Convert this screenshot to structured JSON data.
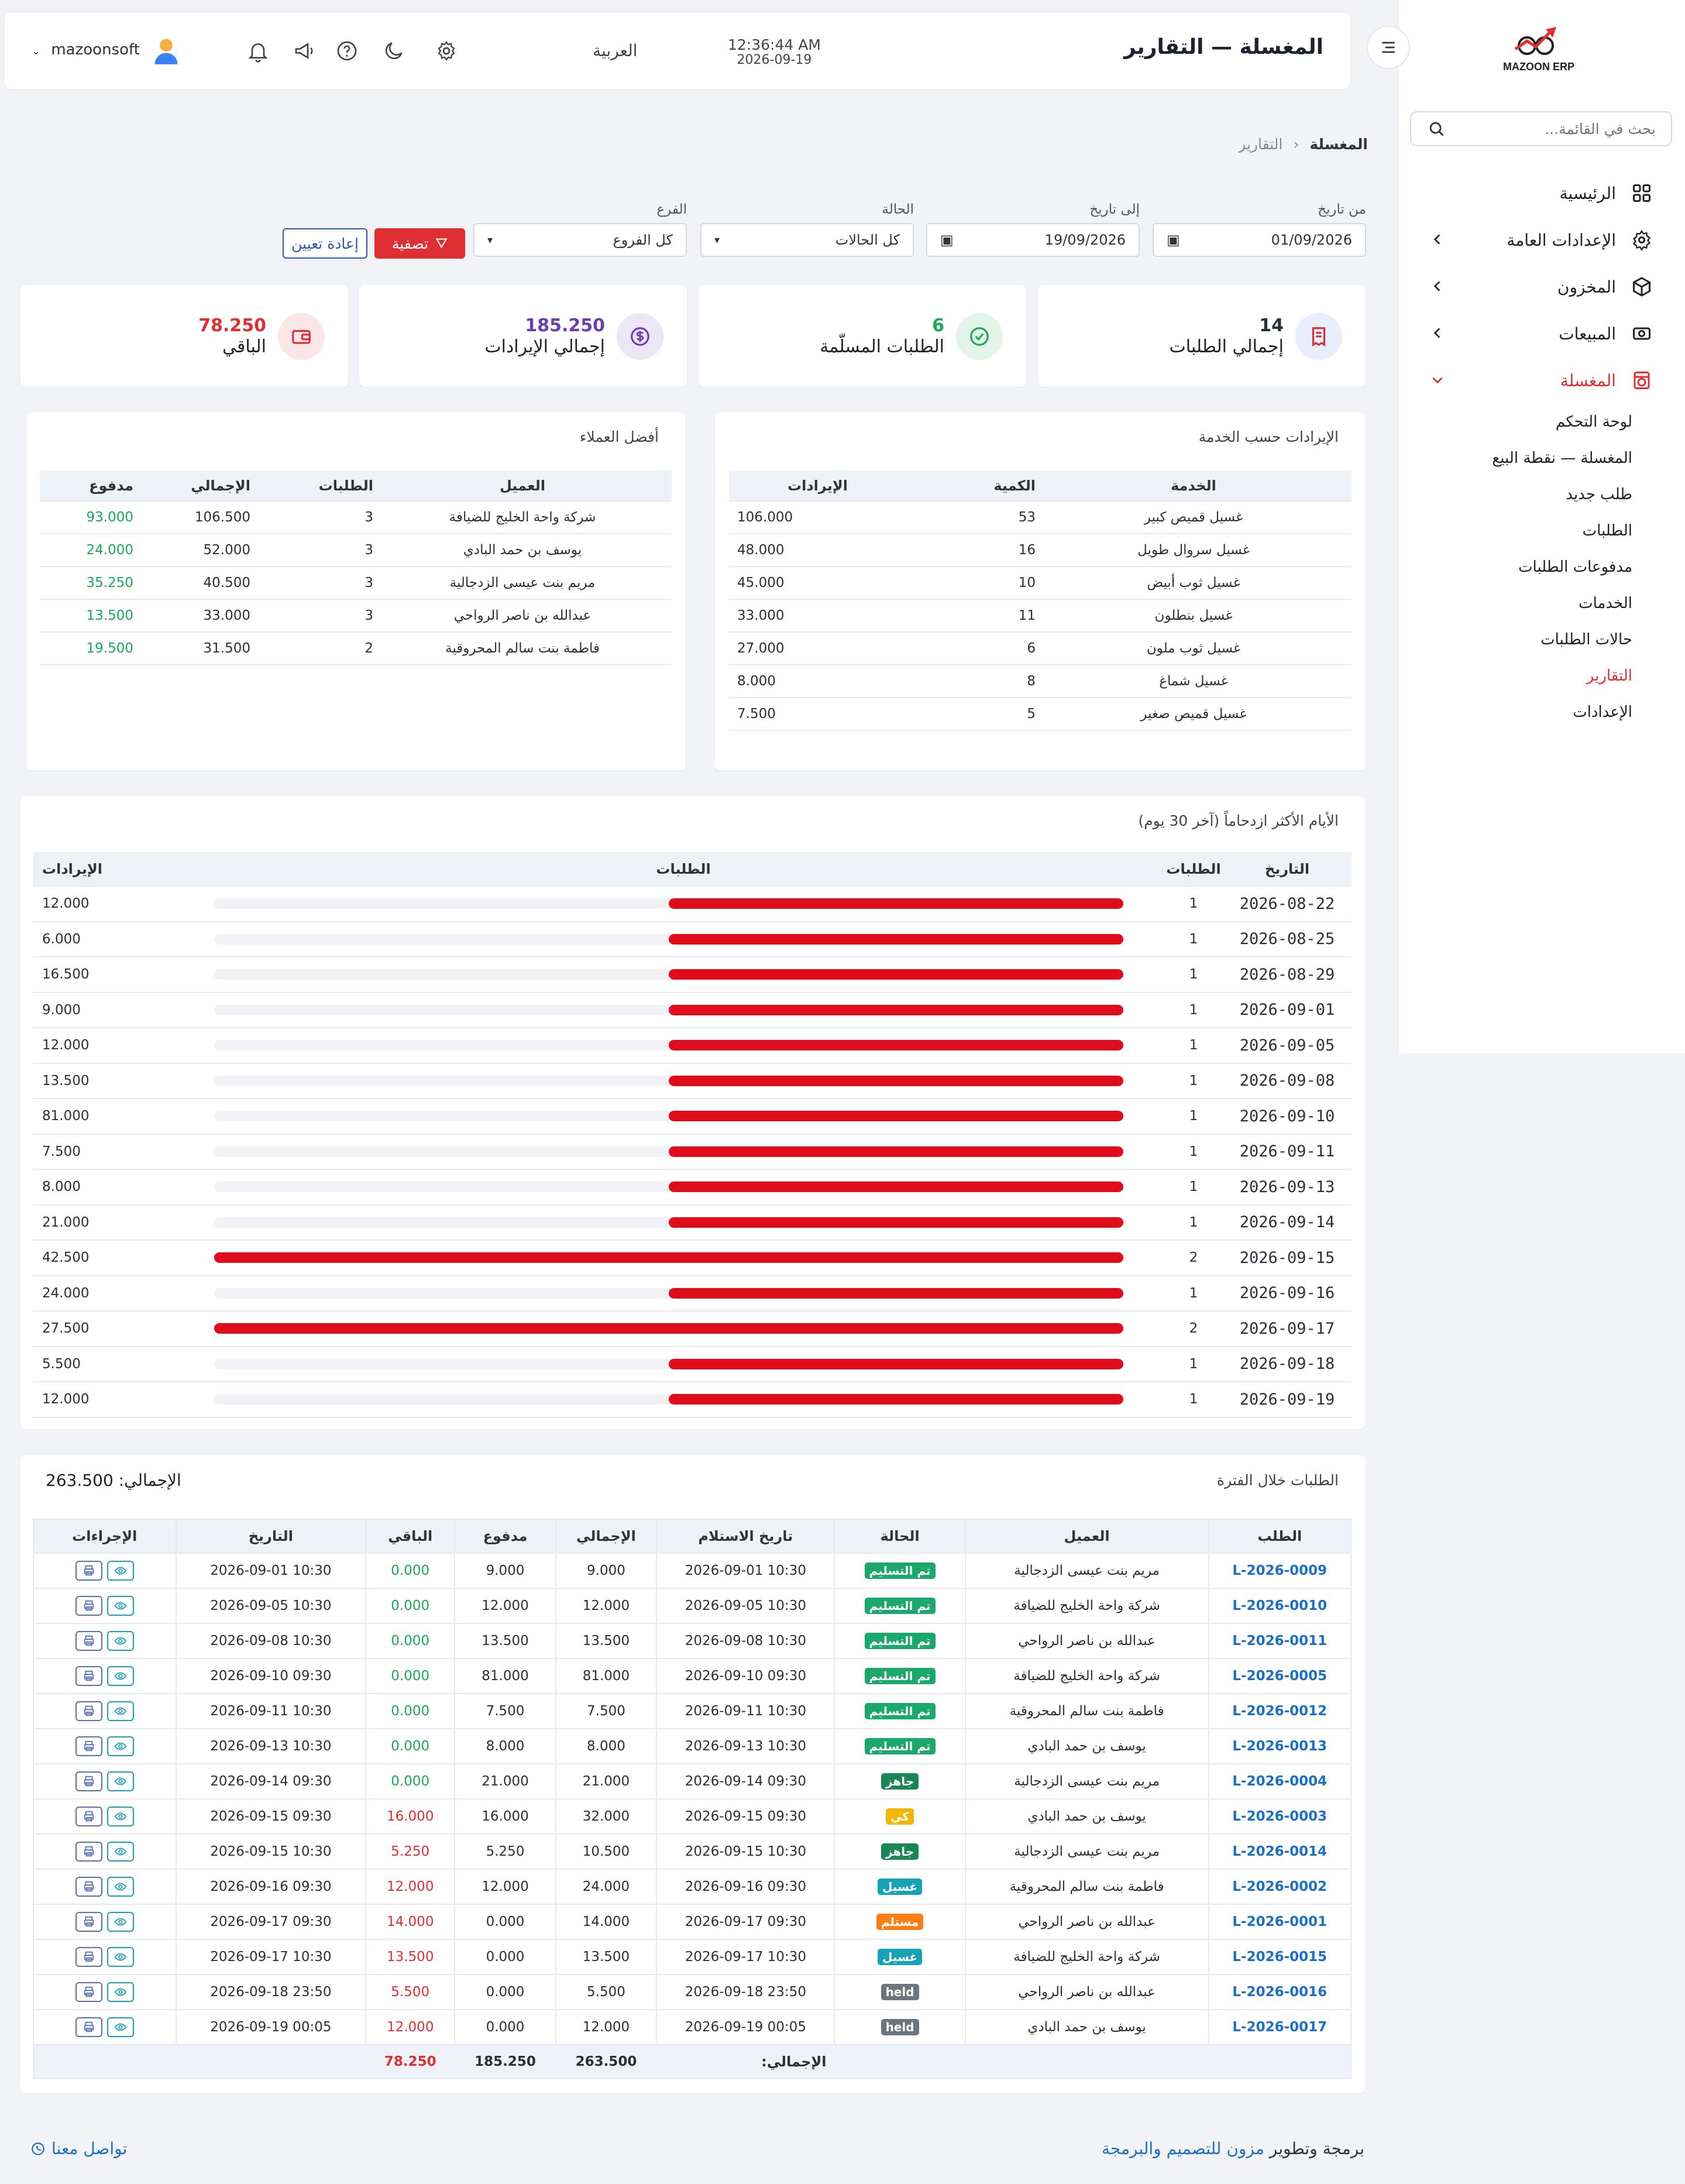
{
  "app": {
    "brand_logo_text": "MAZOON ERP",
    "title": "المغسلة — التقارير",
    "time": "12:36:44 AM",
    "date": "2026-09-19",
    "language": "العربية",
    "username": "mazoonsoft"
  },
  "sidebar": {
    "search_placeholder": "بحث في القائمة...",
    "items": [
      {
        "label": "الرئيسية",
        "icon": "grid-icon"
      },
      {
        "label": "الإعدادات العامة",
        "icon": "gear-icon"
      },
      {
        "label": "المخزون",
        "icon": "box-icon"
      },
      {
        "label": "المبيعات",
        "icon": "cash-icon"
      },
      {
        "label": "المغسلة",
        "icon": "laundry-icon"
      }
    ],
    "sub_items": [
      "لوحة التحكم",
      "المغسلة — نقطة البيع",
      "طلب جديد",
      "الطلبات",
      "مدفوعات الطلبات",
      "الخدمات",
      "حالات الطلبات",
      "التقارير",
      "الإعدادات"
    ],
    "active_sub": "التقارير"
  },
  "breadcrumb": {
    "root": "المغسلة",
    "current": "التقارير"
  },
  "filters": {
    "from_label": "من تاريخ",
    "from_value": "01/09/2026",
    "to_label": "إلى تاريخ",
    "to_value": "19/09/2026",
    "status_label": "الحالة",
    "status_value": "كل الحالات",
    "branch_label": "الفرع",
    "branch_value": "كل الفروع",
    "filter_button": "تصفية",
    "reset_button": "إعادة تعيين"
  },
  "stats": [
    {
      "value": "14",
      "label": "إجمالي الطلبات",
      "color": "#2a2f3a",
      "bg": "#e8eefb",
      "icon": "receipt-icon"
    },
    {
      "value": "6",
      "label": "الطلبات المسلّمة",
      "color": "#1aaa55",
      "bg": "#e3f5ea",
      "icon": "check-circle-icon"
    },
    {
      "value": "185.250",
      "label": "إجمالي الإيرادات",
      "color": "#6b3fb3",
      "bg": "#ece6f7",
      "icon": "dollar-icon"
    },
    {
      "value": "78.250",
      "label": "الباقي",
      "color": "#e02f33",
      "bg": "#fbe6e7",
      "icon": "wallet-icon"
    }
  ],
  "services": {
    "title": "الإيرادات حسب الخدمة",
    "headers": [
      "الخدمة",
      "الكمية",
      "الإيرادات"
    ],
    "rows": [
      [
        "غسيل قميص كبير",
        "53",
        "106.000"
      ],
      [
        "غسيل سروال طويل",
        "16",
        "48.000"
      ],
      [
        "غسيل ثوب أبيض",
        "10",
        "45.000"
      ],
      [
        "غسيل بنطلون",
        "11",
        "33.000"
      ],
      [
        "غسيل ثوب ملون",
        "6",
        "27.000"
      ],
      [
        "غسيل شماغ",
        "8",
        "8.000"
      ],
      [
        "غسيل قميص صغير",
        "5",
        "7.500"
      ]
    ]
  },
  "customers": {
    "title": "أفضل العملاء",
    "headers": [
      "العميل",
      "الطلبات",
      "الإجمالي",
      "مدفوع"
    ],
    "rows": [
      [
        "شركة واحة الخليج للضيافة",
        "3",
        "106.500",
        "93.000"
      ],
      [
        "يوسف بن حمد البادي",
        "3",
        "52.000",
        "24.000"
      ],
      [
        "مريم بنت عيسى الزدجالية",
        "3",
        "40.500",
        "35.250"
      ],
      [
        "عبدالله بن ناصر الرواحي",
        "3",
        "33.000",
        "13.500"
      ],
      [
        "فاطمة بنت سالم المحروقية",
        "2",
        "31.500",
        "19.500"
      ]
    ]
  },
  "busy_days": {
    "title": "الأيام الأكثر ازدحاماً (آخر 30 يوم)",
    "headers": [
      "التاريخ",
      "الطلبات",
      "الطلبات",
      "الإيرادات"
    ],
    "max_orders": 2,
    "rows": [
      {
        "date": "2026-08-22",
        "orders": "1",
        "revenue": "12.000"
      },
      {
        "date": "2026-08-25",
        "orders": "1",
        "revenue": "6.000"
      },
      {
        "date": "2026-08-29",
        "orders": "1",
        "revenue": "16.500"
      },
      {
        "date": "2026-09-01",
        "orders": "1",
        "revenue": "9.000"
      },
      {
        "date": "2026-09-05",
        "orders": "1",
        "revenue": "12.000"
      },
      {
        "date": "2026-09-08",
        "orders": "1",
        "revenue": "13.500"
      },
      {
        "date": "2026-09-10",
        "orders": "1",
        "revenue": "81.000"
      },
      {
        "date": "2026-09-11",
        "orders": "1",
        "revenue": "7.500"
      },
      {
        "date": "2026-09-13",
        "orders": "1",
        "revenue": "8.000"
      },
      {
        "date": "2026-09-14",
        "orders": "1",
        "revenue": "21.000"
      },
      {
        "date": "2026-09-15",
        "orders": "2",
        "revenue": "42.500"
      },
      {
        "date": "2026-09-16",
        "orders": "1",
        "revenue": "24.000"
      },
      {
        "date": "2026-09-17",
        "orders": "2",
        "revenue": "27.500"
      },
      {
        "date": "2026-09-18",
        "orders": "1",
        "revenue": "5.500"
      },
      {
        "date": "2026-09-19",
        "orders": "1",
        "revenue": "12.000"
      }
    ]
  },
  "orders": {
    "title": "الطلبات خلال الفترة",
    "total_label": "الإجمالي: 263.500",
    "headers": [
      "الطلب",
      "العميل",
      "الحالة",
      "تاريخ الاستلام",
      "الإجمالي",
      "مدفوع",
      "الباقي",
      "التاريخ",
      "الإجراءات"
    ],
    "rows": [
      {
        "id": "L-2026-0009",
        "customer": "مريم بنت عيسى الزدجالية",
        "status": "تم التسليم",
        "status_color": "#1aa86b",
        "received": "2026-09-01 10:30",
        "total": "9.000",
        "paid": "9.000",
        "remaining": "0.000",
        "date": "2026-09-01 10:30"
      },
      {
        "id": "L-2026-0010",
        "customer": "شركة واحة الخليج للضيافة",
        "status": "تم التسليم",
        "status_color": "#1aa86b",
        "received": "2026-09-05 10:30",
        "total": "12.000",
        "paid": "12.000",
        "remaining": "0.000",
        "date": "2026-09-05 10:30"
      },
      {
        "id": "L-2026-0011",
        "customer": "عبدالله بن ناصر الرواحي",
        "status": "تم التسليم",
        "status_color": "#1aa86b",
        "received": "2026-09-08 10:30",
        "total": "13.500",
        "paid": "13.500",
        "remaining": "0.000",
        "date": "2026-09-08 10:30"
      },
      {
        "id": "L-2026-0005",
        "customer": "شركة واحة الخليج للضيافة",
        "status": "تم التسليم",
        "status_color": "#1aa86b",
        "received": "2026-09-10 09:30",
        "total": "81.000",
        "paid": "81.000",
        "remaining": "0.000",
        "date": "2026-09-10 09:30"
      },
      {
        "id": "L-2026-0012",
        "customer": "فاطمة بنت سالم المحروقية",
        "status": "تم التسليم",
        "status_color": "#1aa86b",
        "received": "2026-09-11 10:30",
        "total": "7.500",
        "paid": "7.500",
        "remaining": "0.000",
        "date": "2026-09-11 10:30"
      },
      {
        "id": "L-2026-0013",
        "customer": "يوسف بن حمد البادي",
        "status": "تم التسليم",
        "status_color": "#1aa86b",
        "received": "2026-09-13 10:30",
        "total": "8.000",
        "paid": "8.000",
        "remaining": "0.000",
        "date": "2026-09-13 10:30"
      },
      {
        "id": "L-2026-0004",
        "customer": "مريم بنت عيسى الزدجالية",
        "status": "جاهز",
        "status_color": "#198754",
        "received": "2026-09-14 09:30",
        "total": "21.000",
        "paid": "21.000",
        "remaining": "0.000",
        "date": "2026-09-14 09:30"
      },
      {
        "id": "L-2026-0003",
        "customer": "يوسف بن حمد البادي",
        "status": "كي",
        "status_color": "#f2b705",
        "received": "2026-09-15 09:30",
        "total": "32.000",
        "paid": "16.000",
        "remaining": "16.000",
        "date": "2026-09-15 09:30"
      },
      {
        "id": "L-2026-0014",
        "customer": "مريم بنت عيسى الزدجالية",
        "status": "جاهز",
        "status_color": "#198754",
        "received": "2026-09-15 10:30",
        "total": "10.500",
        "paid": "5.250",
        "remaining": "5.250",
        "date": "2026-09-15 10:30"
      },
      {
        "id": "L-2026-0002",
        "customer": "فاطمة بنت سالم المحروقية",
        "status": "غسيل",
        "status_color": "#17a2b8",
        "received": "2026-09-16 09:30",
        "total": "24.000",
        "paid": "12.000",
        "remaining": "12.000",
        "date": "2026-09-16 09:30"
      },
      {
        "id": "L-2026-0001",
        "customer": "عبدالله بن ناصر الرواحي",
        "status": "مستلم",
        "status_color": "#fd7e14",
        "received": "2026-09-17 09:30",
        "total": "14.000",
        "paid": "0.000",
        "remaining": "14.000",
        "date": "2026-09-17 09:30"
      },
      {
        "id": "L-2026-0015",
        "customer": "شركة واحة الخليج للضيافة",
        "status": "غسيل",
        "status_color": "#17a2b8",
        "received": "2026-09-17 10:30",
        "total": "13.500",
        "paid": "0.000",
        "remaining": "13.500",
        "date": "2026-09-17 10:30"
      },
      {
        "id": "L-2026-0016",
        "customer": "عبدالله بن ناصر الرواحي",
        "status": "held",
        "status_color": "#6c757d",
        "received": "2026-09-18 23:50",
        "total": "5.500",
        "paid": "0.000",
        "remaining": "5.500",
        "date": "2026-09-18 23:50"
      },
      {
        "id": "L-2026-0017",
        "customer": "يوسف بن حمد البادي",
        "status": "held",
        "status_color": "#6c757d",
        "received": "2026-09-19 00:05",
        "total": "12.000",
        "paid": "0.000",
        "remaining": "12.000",
        "date": "2026-09-19 00:05"
      }
    ],
    "footer": {
      "label": "الإجمالي:",
      "total": "263.500",
      "paid": "185.250",
      "remaining": "78.250"
    }
  },
  "footer": {
    "credit_prefix": "برمجة وتطوير",
    "credit_link": "مزون للتصميم والبرمجة",
    "contact": "تواصل معنا"
  }
}
